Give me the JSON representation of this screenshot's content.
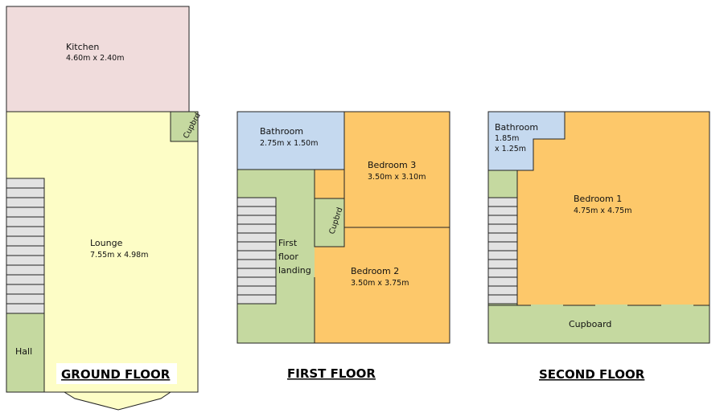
{
  "colors": {
    "kitchen": "#f0dcdc",
    "lounge": "#fdfdc6",
    "green": "#c5d9a0",
    "bath": "#c5d9ef",
    "bedroom": "#fdc86a",
    "stair": "#e2e2e2",
    "wall": "#222222"
  },
  "ground": {
    "title": "GROUND FLOOR",
    "kitchen": {
      "name": "Kitchen",
      "dims": "4.60m x 2.40m"
    },
    "lounge": {
      "name": "Lounge",
      "dims": "7.55m x 4.98m"
    },
    "cupboard": {
      "name": "Cupbrd"
    },
    "hall": {
      "name": "Hall"
    }
  },
  "first": {
    "title": "FIRST FLOOR",
    "bathroom": {
      "name": "Bathroom",
      "dims": "2.75m x 1.50m"
    },
    "bedroom3": {
      "name": "Bedroom  3",
      "dims": "3.50m x 3.10m"
    },
    "bedroom2": {
      "name": "Bedroom  2",
      "dims": "3.50m x 3.75m"
    },
    "cupboard": {
      "name": "Cupbrd"
    },
    "landing": {
      "line1": "First",
      "line2": "floor",
      "line3": "landing"
    }
  },
  "second": {
    "title": "SECOND FLOOR",
    "bathroom": {
      "name": "Bathroom",
      "dims_line1": "1.85m",
      "dims_line2": "x 1.25m"
    },
    "bedroom1": {
      "name": "Bedroom  1",
      "dims": "4.75m x 4.75m"
    },
    "cupboard": {
      "name": "Cupboard"
    }
  }
}
